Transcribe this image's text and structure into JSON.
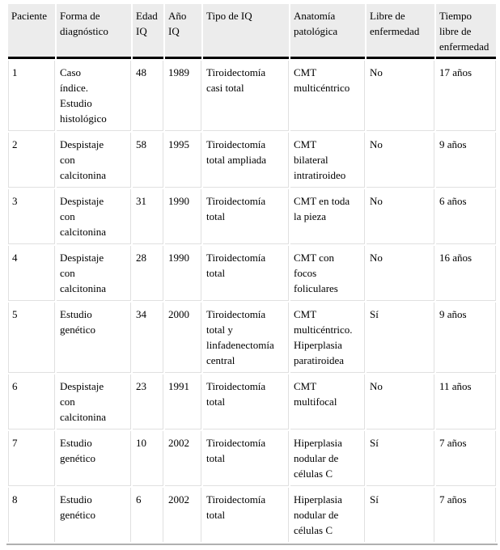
{
  "colors": {
    "header_bg": "#ececec",
    "grid_line": "#e0e0e0",
    "header_rule": "#000000",
    "bottom_rule": "#b0b0b0",
    "text": "#000000",
    "page_bg": "#ffffff"
  },
  "table": {
    "headers": [
      "Paciente",
      "Forma de\ndiagnóstico",
      "Edad\nIQ",
      "Año\nIQ",
      "Tipo de IQ",
      "Anatomía\npatológica",
      "Libre de\nenfermedad",
      "Tiempo\nlibre de\nenfermedad"
    ],
    "rows": [
      [
        "1",
        "Caso\níndice.\nEstudio\nhistológico",
        "48",
        "1989",
        "Tiroidectomía\ncasi total",
        "CMT\nmulticéntrico",
        "No",
        "17 años"
      ],
      [
        "2",
        "Despistaje\ncon\ncalcitonina",
        "58",
        "1995",
        "Tiroidectomía\ntotal ampliada",
        "CMT\nbilateral\nintratiroideo",
        "No",
        "9 años"
      ],
      [
        "3",
        "Despistaje\ncon\ncalcitonina",
        "31",
        "1990",
        "Tiroidectomía\ntotal",
        "CMT en toda\nla pieza",
        "No",
        "6 años"
      ],
      [
        "4",
        "Despistaje\ncon\ncalcitonina",
        "28",
        "1990",
        "Tiroidectomía\ntotal",
        "CMT con\nfocos\nfoliculares",
        "No",
        "16 años"
      ],
      [
        "5",
        "Estudio\ngenético",
        "34",
        "2000",
        "Tiroidectomía\ntotal y\nlinfadenectomía\ncentral",
        "CMT\nmulticéntrico.\nHiperplasia\nparatiroidea",
        "Sí",
        "9 años"
      ],
      [
        "6",
        "Despistaje\ncon\ncalcitonina",
        "23",
        "1991",
        "Tiroidectomía\ntotal",
        "CMT\nmultifocal",
        "No",
        "11 años"
      ],
      [
        "7",
        "Estudio\ngenético",
        "10",
        "2002",
        "Tiroidectomía\ntotal",
        "Hiperplasia\nnodular de\ncélulas C",
        "Sí",
        "7 años"
      ],
      [
        "8",
        "Estudio\ngenético",
        "6",
        "2002",
        "Tiroidectomía\ntotal",
        "Hiperplasia\nnodular de\ncélulas C",
        "Sí",
        "7 años"
      ]
    ]
  }
}
